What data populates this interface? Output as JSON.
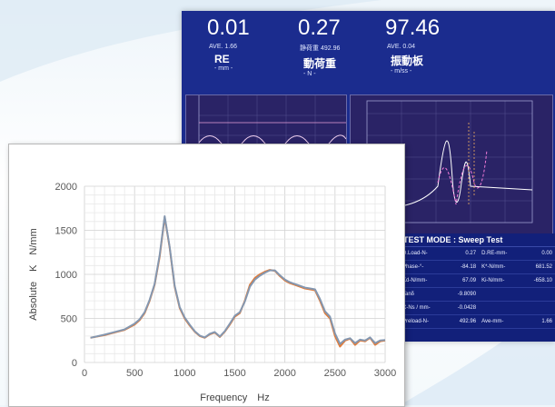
{
  "screen": {
    "readouts": [
      {
        "value": "0.01",
        "ave": "AVE. 1.66",
        "label": "RE",
        "unit": "- mm -"
      },
      {
        "value": "0.27",
        "ave": "静荷重 492.96",
        "label": "動荷重",
        "unit": "- N -"
      },
      {
        "value": "97.46",
        "ave": "AVE. 0.04",
        "label": "振動板",
        "unit": "- m/ss -"
      }
    ],
    "test_mode_label": "TEST MODE : ",
    "test_mode_value": "Sweep Test",
    "results": [
      {
        "label": "D.Load-N-",
        "value": "0.27",
        "label2": "D.RE-mm-",
        "value2": "0.00"
      },
      {
        "label": "Phase-°-",
        "value": "-84.18",
        "label2": "K*-N/mm-",
        "value2": "681.52"
      },
      {
        "label": "Kd-N/mm-",
        "value": "67.09",
        "label2": "Ki-N/mm-",
        "value2": "-658.10"
      },
      {
        "label": "Tanδ",
        "value": "-9.8090",
        "label2": "",
        "value2": ""
      },
      {
        "label": "C-Ns / mm-",
        "value": "-0.0428",
        "label2": "",
        "value2": ""
      },
      {
        "label": "Preload-N-",
        "value": "492.96",
        "label2": "Ave-mm-",
        "value2": "1.66"
      }
    ],
    "colors": {
      "bg": "#1b2c8e",
      "graph_bg": "#2a2366",
      "accent": "#ffe04a"
    }
  },
  "chart_data": {
    "type": "line",
    "title": "",
    "xlabel": "Frequency　Hz",
    "ylabel": "Absolute　K　N/mm",
    "xlim": [
      0,
      3000
    ],
    "ylim": [
      0,
      2000
    ],
    "x_ticks": [
      0,
      500,
      1000,
      1500,
      2000,
      2500,
      3000
    ],
    "y_ticks": [
      0,
      500,
      1000,
      1500,
      2000
    ],
    "grid": true,
    "legend": "none",
    "series": [
      {
        "color": "#e07b39",
        "x": [
          60,
          200,
          400,
          500,
          550,
          600,
          650,
          700,
          750,
          800,
          850,
          900,
          950,
          1000,
          1050,
          1100,
          1150,
          1200,
          1250,
          1300,
          1350,
          1400,
          1450,
          1500,
          1550,
          1600,
          1650,
          1700,
          1750,
          1800,
          1850,
          1900,
          1950,
          2000,
          2050,
          2100,
          2150,
          2200,
          2250,
          2300,
          2350,
          2400,
          2450,
          2500,
          2550,
          2600,
          2650,
          2700,
          2750,
          2800,
          2850,
          2900,
          2950,
          3000
        ],
        "y": [
          280,
          310,
          370,
          430,
          480,
          560,
          700,
          880,
          1200,
          1650,
          1300,
          860,
          620,
          500,
          420,
          350,
          300,
          280,
          320,
          340,
          290,
          350,
          430,
          520,
          560,
          700,
          880,
          960,
          1000,
          1030,
          1050,
          1040,
          980,
          930,
          900,
          880,
          860,
          840,
          830,
          820,
          700,
          560,
          500,
          300,
          180,
          250,
          270,
          200,
          250,
          240,
          280,
          200,
          240,
          250
        ]
      },
      {
        "color": "#8497b0",
        "x": [
          60,
          200,
          400,
          500,
          550,
          600,
          650,
          700,
          750,
          800,
          850,
          900,
          950,
          1000,
          1050,
          1100,
          1150,
          1200,
          1250,
          1300,
          1350,
          1400,
          1450,
          1500,
          1550,
          1600,
          1650,
          1700,
          1750,
          1800,
          1850,
          1900,
          1950,
          2000,
          2050,
          2100,
          2150,
          2200,
          2250,
          2300,
          2350,
          2400,
          2450,
          2500,
          2550,
          2600,
          2650,
          2700,
          2750,
          2800,
          2850,
          2900,
          2950,
          3000
        ],
        "y": [
          280,
          315,
          375,
          440,
          490,
          570,
          710,
          890,
          1220,
          1660,
          1310,
          870,
          630,
          510,
          430,
          355,
          305,
          285,
          325,
          345,
          295,
          355,
          440,
          530,
          570,
          690,
          860,
          940,
          985,
          1020,
          1045,
          1045,
          990,
          940,
          910,
          890,
          870,
          850,
          840,
          830,
          720,
          580,
          520,
          330,
          210,
          260,
          275,
          220,
          260,
          250,
          285,
          220,
          250,
          255
        ]
      }
    ]
  }
}
